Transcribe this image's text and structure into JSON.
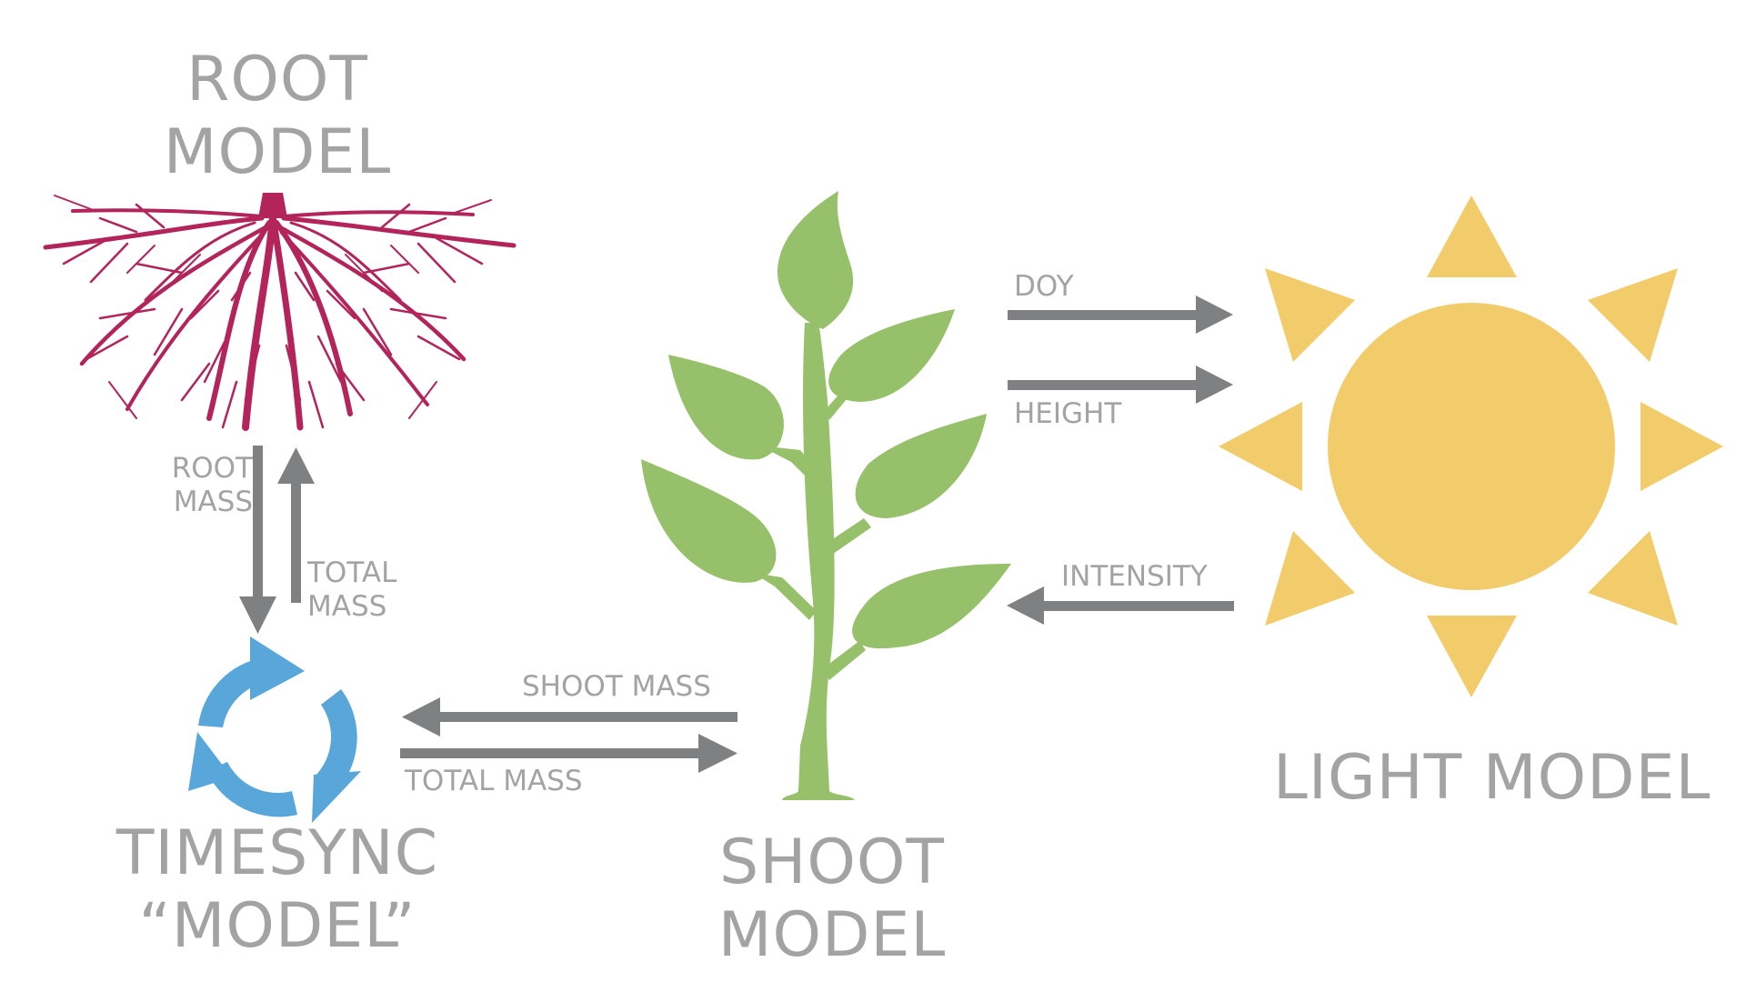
{
  "models": {
    "root": {
      "line1": "ROOT",
      "line2": "MODEL"
    },
    "timesync": {
      "line1": "TIMESYNC",
      "line2": "“MODEL”"
    },
    "shoot": {
      "line1": "SHOOT",
      "line2": "MODEL"
    },
    "light": {
      "label": "LIGHT MODEL"
    }
  },
  "flows": {
    "root_mass": {
      "line1": "ROOT",
      "line2": "MASS"
    },
    "total_mass_up": {
      "line1": "TOTAL",
      "line2": "MASS"
    },
    "shoot_mass": "SHOOT MASS",
    "total_mass_right": "TOTAL MASS",
    "doy": "DOY",
    "height": "HEIGHT",
    "intensity": "INTENSITY"
  },
  "colors": {
    "text": "#a3a3a3",
    "arrow": "#7f8081",
    "root": "#b3245b",
    "plant": "#97c06a",
    "sun": "#f2cc6b",
    "cycle": "#58a6da"
  },
  "icons": {
    "root": "root-system-icon",
    "timesync": "cycle-arrows-icon",
    "shoot": "plant-icon",
    "light": "sun-icon"
  }
}
